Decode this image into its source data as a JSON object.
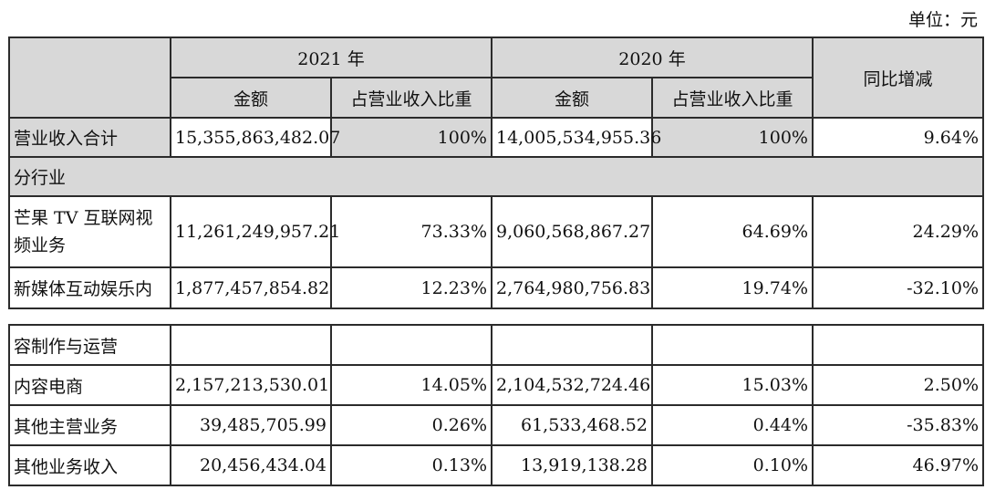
{
  "unit": "单位：元",
  "header": {
    "year1": "2021 年",
    "year2": "2020 年",
    "yoy": "同比增减",
    "amount": "金额",
    "ratio": "占营业收入比重"
  },
  "total": {
    "label": "营业收入合计",
    "amount2021": "15,355,863,482.07",
    "ratio2021": "100%",
    "amount2020": "14,005,534,955.36",
    "ratio2020": "100%",
    "yoy": "9.64%"
  },
  "section_label": "分行业",
  "rows": [
    {
      "label": "芒果 TV 互联网视频业务",
      "amount2021": "11,261,249,957.21",
      "ratio2021": "73.33%",
      "amount2020": "9,060,568,867.27",
      "ratio2020": "64.69%",
      "yoy": "24.29%"
    },
    {
      "label": "新媒体互动娱乐内",
      "amount2021": "1,877,457,854.82",
      "ratio2021": "12.23%",
      "amount2020": "2,764,980,756.83",
      "ratio2020": "19.74%",
      "yoy": "-32.10%"
    }
  ],
  "continued_label": "容制作与运营",
  "rows2": [
    {
      "label": "内容电商",
      "amount2021": "2,157,213,530.01",
      "ratio2021": "14.05%",
      "amount2020": "2,104,532,724.46",
      "ratio2020": "15.03%",
      "yoy": "2.50%"
    },
    {
      "label": "其他主营业务",
      "amount2021": "39,485,705.99",
      "ratio2021": "0.26%",
      "amount2020": "61,533,468.52",
      "ratio2020": "0.44%",
      "yoy": "-35.83%"
    },
    {
      "label": "其他业务收入",
      "amount2021": "20,456,434.04",
      "ratio2021": "0.13%",
      "amount2020": "13,919,138.28",
      "ratio2020": "0.10%",
      "yoy": "46.97%"
    }
  ]
}
